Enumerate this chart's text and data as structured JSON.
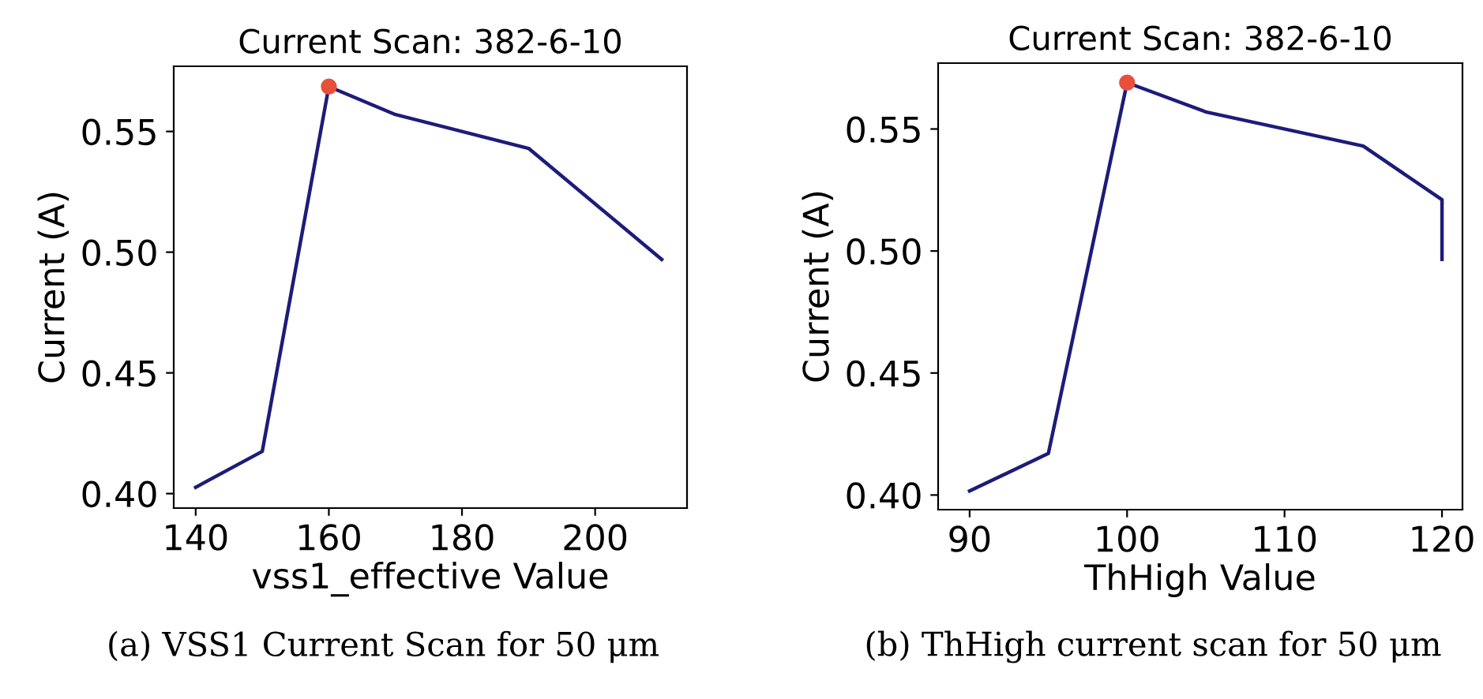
{
  "chart_data": [
    {
      "type": "line",
      "title": "Current Scan: 382-6-10",
      "xlabel": "vss1_effective Value",
      "ylabel": "Current (A)",
      "xlim": [
        136.7,
        213.8
      ],
      "ylim": [
        0.394,
        0.577
      ],
      "xticks": [
        140,
        160,
        180,
        200
      ],
      "yticks": [
        {
          "value": 0.4,
          "label": "0.40"
        },
        {
          "value": 0.45,
          "label": "0.45"
        },
        {
          "value": 0.5,
          "label": "0.50"
        },
        {
          "value": 0.55,
          "label": "0.55"
        }
      ],
      "grid": false,
      "annotations": [
        "(a) VSS1 Current Scan for 50 μm"
      ],
      "series": [
        {
          "color": "#1c1c7a",
          "x": [
            140,
            150,
            160,
            170,
            190,
            210
          ],
          "values": [
            0.4026,
            0.4175,
            0.5686,
            0.557,
            0.543,
            0.497
          ]
        },
        {
          "type": "scatter",
          "color": "#e8503c",
          "x": [
            160
          ],
          "values": [
            0.5686
          ]
        }
      ]
    },
    {
      "type": "line",
      "title": "Current Scan: 382-6-10",
      "xlabel": "ThHigh Value",
      "ylabel": "Current (A)",
      "xlim": [
        88.0,
        121.3
      ],
      "ylim": [
        0.394,
        0.577
      ],
      "xticks": [
        90,
        100,
        110,
        120
      ],
      "yticks": [
        {
          "value": 0.4,
          "label": "0.40"
        },
        {
          "value": 0.45,
          "label": "0.45"
        },
        {
          "value": 0.5,
          "label": "0.50"
        },
        {
          "value": 0.55,
          "label": "0.55"
        }
      ],
      "grid": false,
      "annotations": [
        "(b) ThHigh current scan for 50 μm"
      ],
      "series": [
        {
          "color": "#1c1c7a",
          "x": [
            90,
            95,
            100,
            105,
            115,
            120,
            120
          ],
          "values": [
            0.4017,
            0.417,
            0.569,
            0.557,
            0.543,
            0.521,
            0.4966
          ]
        },
        {
          "type": "scatter",
          "color": "#e8503c",
          "x": [
            100
          ],
          "values": [
            0.569
          ]
        }
      ]
    }
  ]
}
